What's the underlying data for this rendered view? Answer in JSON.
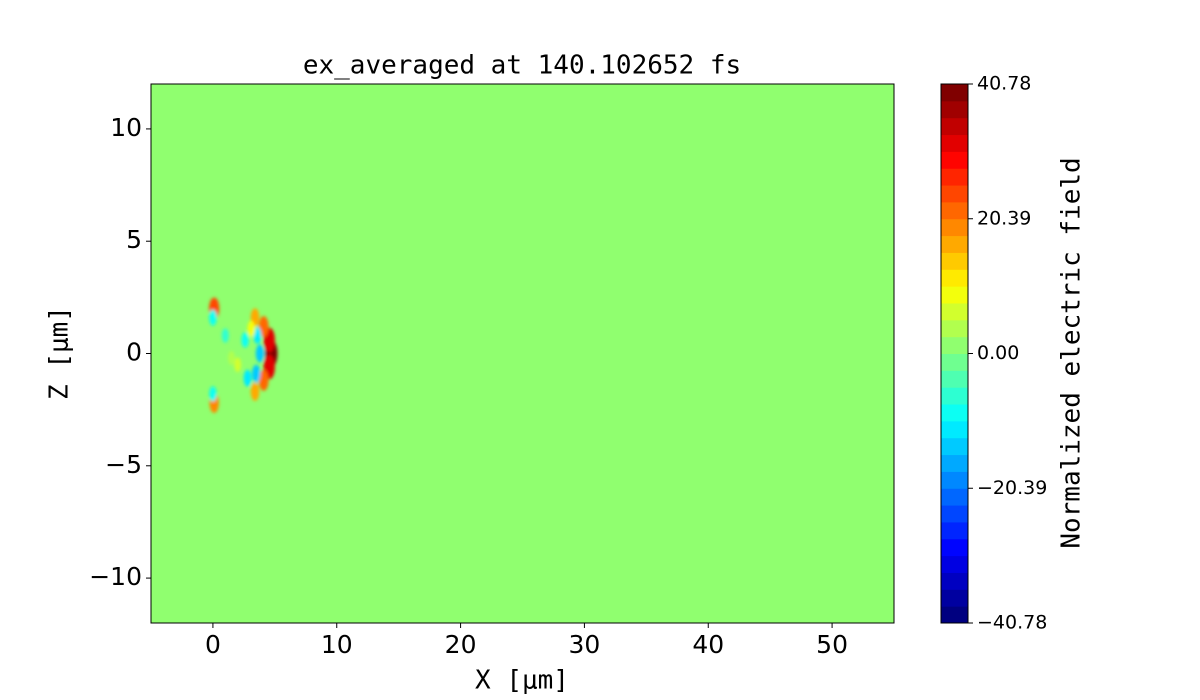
{
  "chart_data": {
    "type": "heatmap",
    "title": "ex_averaged at 140.102652 fs",
    "xlabel": "X [μm]",
    "ylabel": "Z [μm]",
    "colorbar_label": "Normalized electric field",
    "colormap": "jet",
    "xlim": [
      -5,
      55
    ],
    "ylim": [
      -12,
      12
    ],
    "xticks": [
      0,
      10,
      20,
      30,
      40,
      50
    ],
    "yticks": [
      {
        "value": -10,
        "label": "−10"
      },
      {
        "value": -5,
        "label": "−5"
      },
      {
        "value": 0,
        "label": "0"
      },
      5,
      10
    ],
    "clim": [
      -40.78,
      40.78
    ],
    "cticks": [
      {
        "value": -40.78,
        "label": "−40.78"
      },
      {
        "value": -20.39,
        "label": "−20.39"
      },
      {
        "value": 0,
        "label": "0.00"
      },
      20.39,
      40.78
    ],
    "background_value": 0,
    "x": [
      4.7,
      4.55,
      4.55,
      4.1,
      4.1,
      3.4,
      3.4,
      3.8,
      3.6,
      3.5,
      0.1,
      0.1,
      0.0,
      0.0,
      2.8,
      1.0,
      2.0,
      2.6,
      1.5,
      3.1
    ],
    "y": [
      0.0,
      0.6,
      -0.6,
      1.2,
      -1.2,
      1.6,
      -1.7,
      0.0,
      0.8,
      -0.9,
      2.0,
      -2.2,
      1.6,
      -1.8,
      -1.1,
      0.8,
      -0.5,
      0.6,
      -0.2,
      1.1
    ],
    "values": [
      40,
      32,
      32,
      22,
      22,
      16,
      16,
      -15,
      -12,
      -15,
      25,
      20,
      -10,
      -8,
      -12,
      -6,
      6,
      -8,
      5,
      10
    ]
  }
}
